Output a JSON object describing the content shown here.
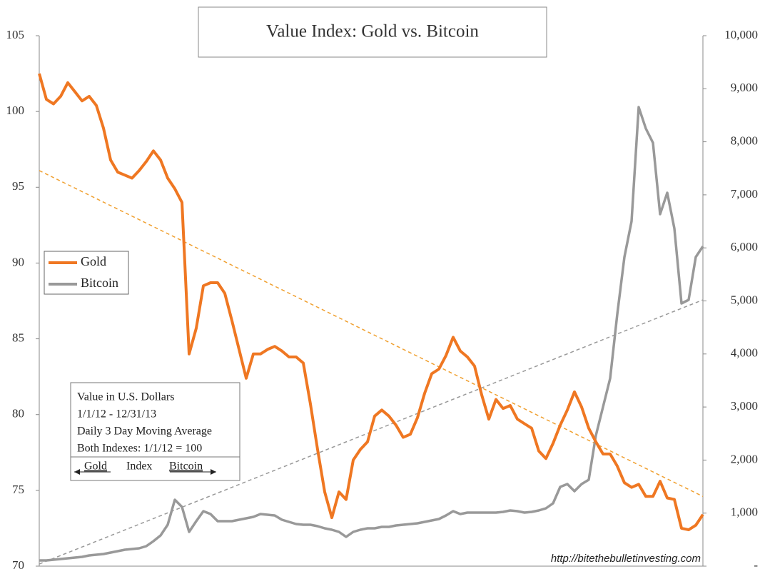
{
  "chart_data": {
    "type": "line",
    "title": "Value Index: Gold vs. Bitcoin",
    "categories": [
      null,
      null,
      null,
      null,
      null,
      null,
      null,
      null,
      null,
      null,
      null,
      null,
      null,
      null,
      null,
      null,
      null,
      null,
      null,
      null,
      null,
      null,
      null,
      null,
      null,
      null,
      null,
      null,
      null,
      null,
      null,
      null,
      null,
      null,
      null,
      null,
      null,
      null,
      null,
      null,
      null,
      null,
      null,
      null,
      null,
      null,
      null,
      null,
      null,
      null,
      null,
      null,
      null,
      null,
      null,
      null,
      null,
      null,
      null,
      null,
      null,
      null,
      null,
      null,
      null,
      null,
      null,
      null,
      null,
      null,
      null,
      null,
      null,
      null,
      null,
      null,
      null,
      null,
      null,
      null,
      null,
      null,
      null,
      null,
      null,
      null,
      null,
      null,
      null,
      null,
      null,
      null,
      null,
      null
    ],
    "series": [
      {
        "name": "Gold",
        "color": "#ef7722",
        "axis": "y",
        "values": [
          102.5,
          100.8,
          100.5,
          101.0,
          101.9,
          101.3,
          100.7,
          101.0,
          100.4,
          98.9,
          96.8,
          96.0,
          95.8,
          95.6,
          96.1,
          96.7,
          97.4,
          96.8,
          95.6,
          94.9,
          94.0,
          84.0,
          85.7,
          88.5,
          88.7,
          88.7,
          88.0,
          86.2,
          84.3,
          82.4,
          84.0,
          84.0,
          84.3,
          84.5,
          84.2,
          83.8,
          83.8,
          83.4,
          80.7,
          77.7,
          74.9,
          73.2,
          74.9,
          74.4,
          77.0,
          77.7,
          78.2,
          79.9,
          80.3,
          79.9,
          79.3,
          78.5,
          78.7,
          79.8,
          81.4,
          82.7,
          83.0,
          83.9,
          85.1,
          84.2,
          83.8,
          83.2,
          81.3,
          79.7,
          81.0,
          80.4,
          80.6,
          79.7,
          79.4,
          79.1,
          77.6,
          77.1,
          78.1,
          79.3,
          80.3,
          81.5,
          80.5,
          79.1,
          78.2,
          77.4,
          77.4,
          76.6,
          75.5,
          75.2,
          75.4,
          74.6,
          74.6,
          75.6,
          74.5,
          74.4,
          72.5,
          72.4,
          72.7,
          73.4
        ]
      },
      {
        "name": "Bitcoin",
        "color": "#999999",
        "axis": "y2",
        "values": [
          108,
          108,
          121,
          135,
          148,
          162,
          175,
          202,
          215,
          229,
          256,
          283,
          310,
          323,
          336,
          377,
          471,
          579,
          781,
          1252,
          1117,
          646,
          848,
          1036,
          983,
          848,
          848,
          848,
          875,
          902,
          929,
          983,
          969,
          956,
          875,
          834,
          794,
          781,
          781,
          754,
          713,
          686,
          646,
          552,
          646,
          686,
          713,
          713,
          740,
          740,
          767,
          781,
          794,
          808,
          834,
          861,
          888,
          956,
          1036,
          983,
          1009,
          1009,
          1009,
          1009,
          1009,
          1023,
          1050,
          1036,
          1009,
          1023,
          1050,
          1090,
          1184,
          1494,
          1548,
          1413,
          1548,
          1629,
          2463,
          3001,
          3540,
          4751,
          5828,
          6501,
          8654,
          8250,
          7981,
          6635,
          7039,
          6366,
          4953,
          5020,
          5828,
          6030
        ]
      }
    ],
    "trendlines": [
      {
        "color": "#f0a030",
        "axis": "y",
        "values": [
          96.1,
          74.6
        ]
      },
      {
        "color": "#999999",
        "axis": "y2",
        "values": [
          40,
          5020
        ]
      }
    ],
    "ylim": [
      70,
      105
    ],
    "yticks": [
      70,
      75,
      80,
      85,
      90,
      95,
      100,
      105
    ],
    "y2lim": [
      0,
      10000
    ],
    "y2ticks": [
      {
        "value": 0,
        "label": "-"
      },
      {
        "value": 1000,
        "label": "1,000"
      },
      {
        "value": 2000,
        "label": "2,000"
      },
      {
        "value": 3000,
        "label": "3,000"
      },
      {
        "value": 4000,
        "label": "4,000"
      },
      {
        "value": 5000,
        "label": "5,000"
      },
      {
        "value": 6000,
        "label": "6,000"
      },
      {
        "value": 7000,
        "label": "7,000"
      },
      {
        "value": 8000,
        "label": "8,000"
      },
      {
        "value": 9000,
        "label": "9,000"
      },
      {
        "value": 10000,
        "label": "10,000"
      }
    ],
    "legend": "left",
    "annotation": {
      "lines": [
        "Value in U.S. Dollars",
        "1/1/12 - 12/31/13",
        "Daily 3 Day Moving Average",
        "Both Indexes: 1/1/12 = 100"
      ],
      "footer": [
        "Gold",
        "Index",
        "Bitcoin"
      ]
    },
    "source": "http://bitethebulletinvesting.com"
  }
}
